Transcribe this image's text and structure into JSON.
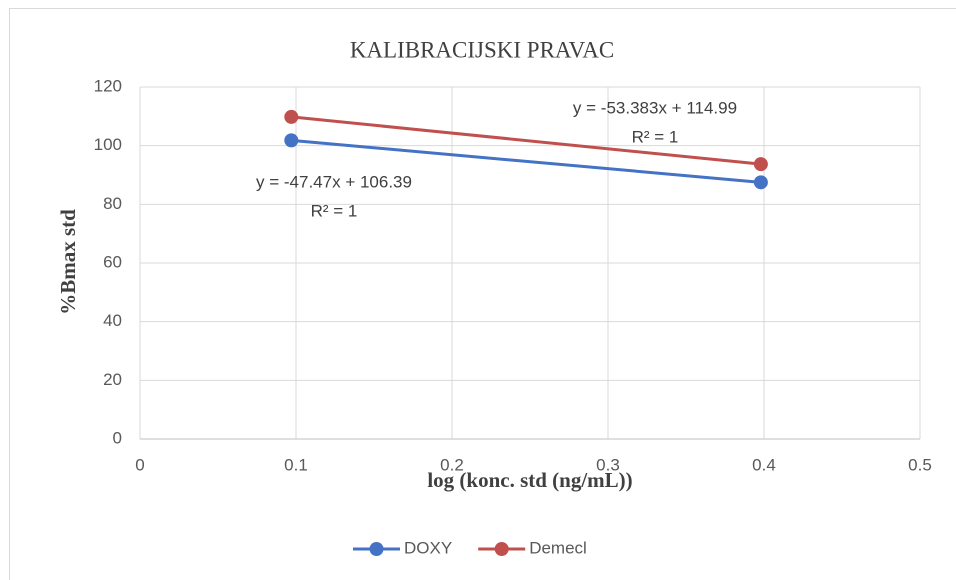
{
  "chart_data": {
    "type": "line",
    "title": "KALIBRACIJSKI PRAVAC",
    "xlabel": "log (konc. std (ng/mL))",
    "ylabel": "%Bmax std",
    "series": [
      {
        "name": "DOXY",
        "color": "#4472c4",
        "x": [
          0.097,
          0.398
        ],
        "values": [
          101.8,
          87.5
        ]
      },
      {
        "name": "Demecl",
        "color": "#c0504d",
        "x": [
          0.097,
          0.398
        ],
        "values": [
          109.8,
          93.7
        ]
      }
    ],
    "annotations": [
      {
        "lines": [
          "y = -47.47x + 106.39",
          "R² = 1"
        ]
      },
      {
        "lines": [
          "y = -53.383x + 114.99",
          "R² = 1"
        ]
      }
    ],
    "xlim": [
      0,
      0.5
    ],
    "xticks": [
      0,
      0.1,
      0.2,
      0.3,
      0.4,
      0.5
    ],
    "ylim": [
      0,
      120
    ],
    "yticks": [
      0,
      20,
      40,
      60,
      80,
      100,
      120
    ],
    "grid": true,
    "legend": "bottom"
  }
}
